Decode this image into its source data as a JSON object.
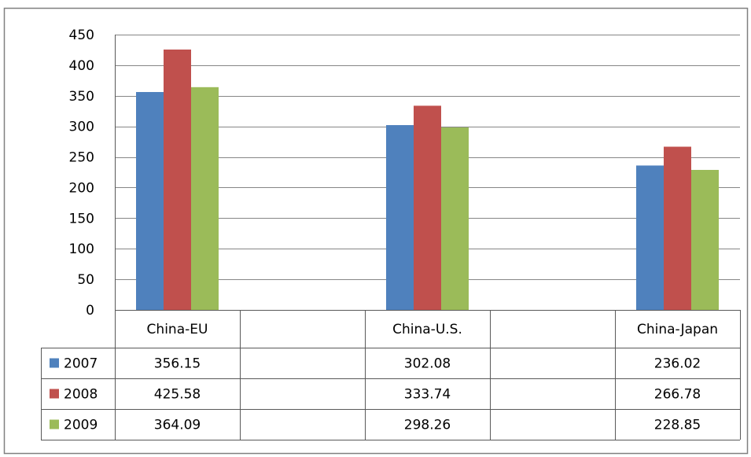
{
  "chart_data": {
    "type": "bar",
    "categories": [
      "China-EU",
      "",
      "China-U.S.",
      "",
      "China-Japan"
    ],
    "series": [
      {
        "name": "2007",
        "values": [
          356.15,
          null,
          302.08,
          null,
          236.02
        ]
      },
      {
        "name": "2008",
        "values": [
          425.58,
          null,
          333.74,
          null,
          266.78
        ]
      },
      {
        "name": "2009",
        "values": [
          364.09,
          null,
          298.26,
          null,
          228.85
        ]
      }
    ],
    "value_labels": [
      [
        "356.15",
        "",
        "302.08",
        "",
        "236.02"
      ],
      [
        "425.58",
        "",
        "333.74",
        "",
        "266.78"
      ],
      [
        "364.09",
        "",
        "298.26",
        "",
        "228.85"
      ]
    ],
    "ylim": [
      0,
      450
    ],
    "yticks": [
      "0",
      "50",
      "100",
      "150",
      "200",
      "250",
      "300",
      "350",
      "400",
      "450"
    ],
    "grid": true,
    "legend": "data-table-left",
    "title": "",
    "xlabel": "",
    "ylabel": ""
  },
  "colors": {
    "series": [
      "#4F81BD",
      "#C0504D",
      "#9BBB59"
    ],
    "grid": "#868686",
    "frame": "#808080",
    "table_border": "#595959"
  }
}
